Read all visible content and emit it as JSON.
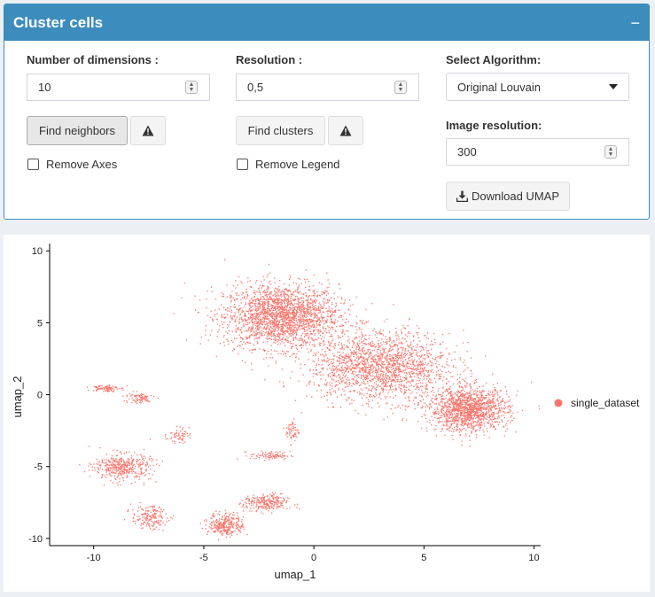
{
  "panel": {
    "title": "Cluster cells",
    "collapse_symbol": "−"
  },
  "controls": {
    "dims": {
      "label": "Number of dimensions :",
      "value": "10"
    },
    "find_neighbors_label": "Find neighbors",
    "remove_axes_label": "Remove Axes",
    "resolution": {
      "label": "Resolution :",
      "value": "0,5"
    },
    "find_clusters_label": "Find clusters",
    "remove_legend_label": "Remove Legend",
    "algorithm": {
      "label": "Select Algorithm:",
      "selected": "Original Louvain"
    },
    "image_resolution": {
      "label": "Image resolution:",
      "value": "300"
    },
    "download_label": "Download UMAP"
  },
  "colors": {
    "accent": "#3c8dbc",
    "point": "#f8766d"
  },
  "chart_data": {
    "type": "scatter",
    "xlabel": "umap_1",
    "ylabel": "umap_2",
    "xlim": [
      -12,
      10.3
    ],
    "ylim": [
      -10.5,
      10.2
    ],
    "x_ticks": [
      -10,
      -5,
      0,
      5,
      10
    ],
    "y_ticks": [
      -10,
      -5,
      0,
      5,
      10
    ],
    "legend": {
      "position": "right",
      "entries": [
        {
          "name": "single_dataset",
          "color": "#f8766d"
        }
      ]
    },
    "series": [
      {
        "name": "single_dataset",
        "clusters": [
          {
            "center": [
              -1.5,
              5.5
            ],
            "spread": [
              2.6,
              2.2
            ],
            "n": 2200
          },
          {
            "center": [
              3.0,
              2.0
            ],
            "spread": [
              3.2,
              2.4
            ],
            "n": 1800
          },
          {
            "center": [
              7.0,
              -1.0
            ],
            "spread": [
              1.8,
              1.5
            ],
            "n": 1400
          },
          {
            "center": [
              -9.5,
              0.5
            ],
            "spread": [
              0.6,
              0.25
            ],
            "n": 90
          },
          {
            "center": [
              -8.0,
              -0.2
            ],
            "spread": [
              0.7,
              0.4
            ],
            "n": 80
          },
          {
            "center": [
              -8.7,
              -5.0
            ],
            "spread": [
              1.3,
              0.9
            ],
            "n": 420
          },
          {
            "center": [
              -7.5,
              -8.5
            ],
            "spread": [
              0.8,
              0.8
            ],
            "n": 180
          },
          {
            "center": [
              -6.2,
              -2.8
            ],
            "spread": [
              0.5,
              0.5
            ],
            "n": 60
          },
          {
            "center": [
              -4.0,
              -9.0
            ],
            "spread": [
              0.8,
              0.8
            ],
            "n": 300
          },
          {
            "center": [
              -2.2,
              -7.5
            ],
            "spread": [
              1.0,
              0.6
            ],
            "n": 260
          },
          {
            "center": [
              -2.0,
              -4.2
            ],
            "spread": [
              0.9,
              0.3
            ],
            "n": 90
          },
          {
            "center": [
              -1.0,
              -2.5
            ],
            "spread": [
              0.3,
              0.8
            ],
            "n": 60
          }
        ]
      }
    ]
  }
}
